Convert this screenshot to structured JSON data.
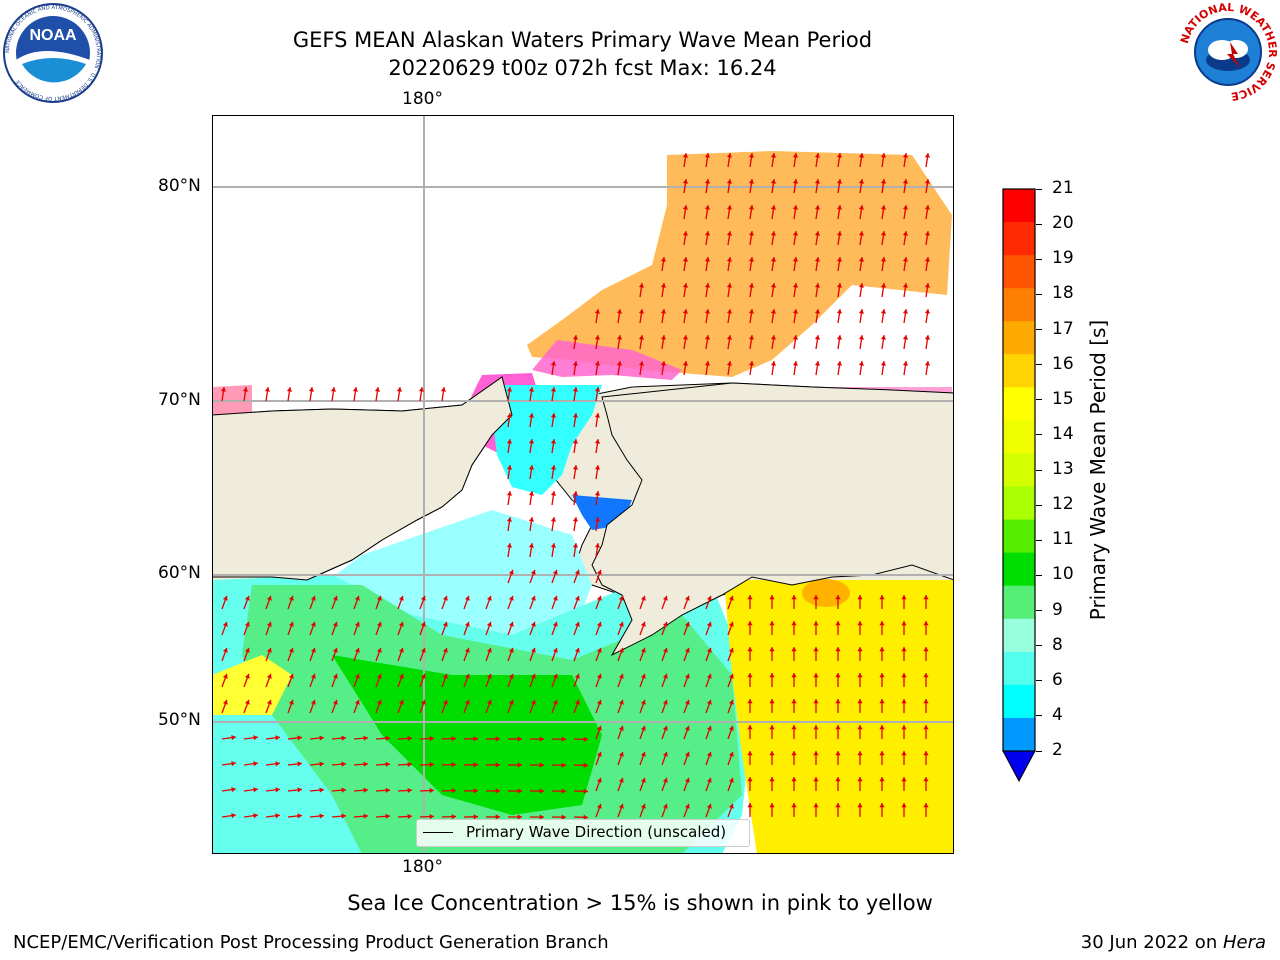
{
  "header": {
    "title_line1": "GEFS MEAN Alaskan Waters Primary Wave Mean Period",
    "title_line2": "20220629 t00z 072h fcst   Max: 16.24"
  },
  "logos": {
    "noaa": {
      "text": "NOAA",
      "ring_text": "NATIONAL OCEANIC AND ATMOSPHERIC ADMINISTRATION · U.S. DEPARTMENT OF COMMERCE"
    },
    "nws": {
      "ring_text": "NATIONAL WEATHER SERVICE"
    }
  },
  "map": {
    "top_lon_label": "180°",
    "bottom_lon_label": "180°",
    "lat_labels": [
      "80°N",
      "70°N",
      "60°N",
      "50°N"
    ],
    "legend_text": "Primary Wave Direction (unscaled)",
    "ocean_color": "#ffffff",
    "land_color": "#efecdc",
    "arrow_color": "#e60000"
  },
  "colorbar": {
    "label": "Primary Wave Mean Period [s]",
    "ticks": [
      "21",
      "20",
      "19",
      "18",
      "17",
      "16",
      "15",
      "14",
      "13",
      "12",
      "11",
      "10",
      "9",
      "8",
      "6",
      "4",
      "2"
    ],
    "colors_top_to_bottom": [
      "#ff0000",
      "#ff2a00",
      "#ff5500",
      "#ff7f00",
      "#ffaa00",
      "#ffd400",
      "#ffff00",
      "#f0ff00",
      "#d4ff00",
      "#aaff00",
      "#55ee00",
      "#00dd00",
      "#55ee77",
      "#99ffdd",
      "#55ffee",
      "#00ffff",
      "#0099ff"
    ],
    "under_color": "#0000ee"
  },
  "footer": {
    "caption": "Sea Ice Concentration > 15% is shown in pink to yellow",
    "left": "NCEP/EMC/Verification Post Processing Product Generation Branch",
    "right_prefix": "30 Jun 2022 on ",
    "right_italic": "Hera"
  },
  "chart_data": {
    "type": "heatmap",
    "title": "GEFS MEAN Alaskan Waters Primary Wave Mean Period",
    "subtitle": "20220629 t00z 072h fcst   Max: 16.24",
    "variable": "Primary Wave Mean Period [s]",
    "max_value": 16.24,
    "colorbar_range": [
      2,
      21
    ],
    "colorbar_levels": [
      2,
      4,
      6,
      8,
      9,
      10,
      11,
      12,
      13,
      14,
      15,
      16,
      17,
      18,
      19,
      20,
      21
    ],
    "vector_field": "Primary Wave Direction (unscaled)",
    "lat_gridlines": [
      "50°N",
      "60°N",
      "70°N",
      "80°N"
    ],
    "lon_gridline": "180°",
    "grid": true,
    "legend_position": "bottom-center",
    "note": "Sea Ice Concentration > 15% is shown in pink to yellow"
  }
}
